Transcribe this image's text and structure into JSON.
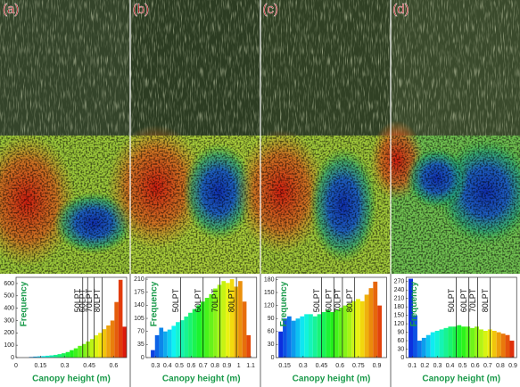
{
  "chart_data": [
    {
      "type": "histogram",
      "label": "(a)",
      "x_label": "Canopy height (m)",
      "y_label": "Frequency",
      "bins": [
        0.08,
        0.105,
        0.13,
        0.155,
        0.18,
        0.205,
        0.23,
        0.255,
        0.28,
        0.305,
        0.33,
        0.355,
        0.38,
        0.405,
        0.43,
        0.455,
        0.48,
        0.505,
        0.53,
        0.555,
        0.58,
        0.605,
        0.63,
        0.655,
        0.68
      ],
      "values": [
        5,
        8,
        10,
        12,
        15,
        18,
        22,
        28,
        35,
        45,
        60,
        75,
        95,
        110,
        130,
        150,
        180,
        200,
        230,
        260,
        300,
        450,
        630,
        250
      ],
      "xlim": [
        0,
        0.68
      ],
      "xticks": [
        0,
        0.15,
        0.3,
        0.45,
        0.6
      ],
      "ylim": [
        0,
        650
      ],
      "yticks": [
        0,
        100,
        200,
        300,
        400,
        500,
        600
      ],
      "lines": [
        {
          "value": 0.41,
          "label": "50LPT"
        },
        {
          "value": 0.44,
          "label": "60LPT"
        },
        {
          "value": 0.48,
          "label": "70LPT"
        },
        {
          "value": 0.53,
          "label": "80LPT"
        }
      ]
    },
    {
      "type": "histogram",
      "label": "(b)",
      "x_label": "Canopy height (m)",
      "y_label": "Frequency",
      "bins": [
        0.26,
        0.295,
        0.33,
        0.365,
        0.4,
        0.435,
        0.47,
        0.505,
        0.54,
        0.575,
        0.61,
        0.645,
        0.68,
        0.715,
        0.75,
        0.785,
        0.82,
        0.855,
        0.89,
        0.925,
        0.96,
        0.995,
        1.03,
        1.065,
        1.1
      ],
      "values": [
        20,
        60,
        80,
        70,
        75,
        85,
        95,
        100,
        110,
        120,
        130,
        140,
        150,
        160,
        170,
        185,
        195,
        205,
        200,
        210,
        190,
        205,
        150,
        60
      ],
      "xlim": [
        0.22,
        1.15
      ],
      "xticks": [
        0.3,
        0.4,
        0.5,
        0.6,
        0.7,
        0.8,
        0.9,
        1,
        1.1
      ],
      "ylim": [
        0,
        215
      ],
      "yticks": [
        0,
        35,
        70,
        105,
        140,
        175,
        210
      ],
      "lines": [
        {
          "value": 0.51,
          "label": "50LPT"
        },
        {
          "value": 0.7,
          "label": "60LPT"
        },
        {
          "value": 0.84,
          "label": "70LPT"
        },
        {
          "value": 0.98,
          "label": "80LPT"
        }
      ]
    },
    {
      "type": "histogram",
      "label": "(c)",
      "x_label": "Canopy height (m)",
      "y_label": "Frequency",
      "bins": [
        0.1,
        0.135,
        0.17,
        0.205,
        0.24,
        0.275,
        0.31,
        0.345,
        0.38,
        0.415,
        0.45,
        0.485,
        0.52,
        0.555,
        0.59,
        0.625,
        0.66,
        0.695,
        0.73,
        0.765,
        0.8,
        0.835,
        0.87,
        0.905,
        0.94
      ],
      "values": [
        60,
        90,
        95,
        85,
        90,
        95,
        100,
        100,
        95,
        100,
        105,
        110,
        105,
        110,
        115,
        120,
        125,
        130,
        135,
        130,
        145,
        160,
        175,
        120
      ],
      "xlim": [
        0.08,
        0.98
      ],
      "xticks": [
        0.15,
        0.3,
        0.45,
        0.6,
        0.75,
        0.9
      ],
      "ylim": [
        0,
        185
      ],
      "yticks": [
        0,
        30,
        60,
        90,
        120,
        150,
        180
      ],
      "lines": [
        {
          "value": 0.45,
          "label": "50LPT"
        },
        {
          "value": 0.55,
          "label": "60LPT"
        },
        {
          "value": 0.62,
          "label": "70LPT"
        },
        {
          "value": 0.72,
          "label": "80LPT"
        }
      ]
    },
    {
      "type": "histogram",
      "label": "(d)",
      "x_label": "Canopy height (m)",
      "y_label": "Frequency",
      "bins": [
        0.07,
        0.105,
        0.14,
        0.175,
        0.21,
        0.245,
        0.28,
        0.315,
        0.35,
        0.385,
        0.42,
        0.455,
        0.49,
        0.525,
        0.56,
        0.595,
        0.63,
        0.665,
        0.7,
        0.735,
        0.77,
        0.805,
        0.84,
        0.875,
        0.91
      ],
      "values": [
        280,
        150,
        60,
        70,
        80,
        90,
        95,
        100,
        105,
        110,
        110,
        115,
        110,
        110,
        105,
        110,
        100,
        95,
        100,
        95,
        90,
        85,
        80,
        60
      ],
      "xlim": [
        0.05,
        0.93
      ],
      "xticks": [
        0.1,
        0.2,
        0.3,
        0.4,
        0.5,
        0.6,
        0.7,
        0.8,
        0.9
      ],
      "ylim": [
        0,
        285
      ],
      "yticks": [
        0,
        30,
        60,
        90,
        120,
        150,
        180,
        210,
        240,
        270
      ],
      "lines": [
        {
          "value": 0.45,
          "label": "50LPT"
        },
        {
          "value": 0.55,
          "label": "60LPT"
        },
        {
          "value": 0.62,
          "label": "70LPT"
        },
        {
          "value": 0.72,
          "label": "80LPT"
        }
      ]
    }
  ]
}
